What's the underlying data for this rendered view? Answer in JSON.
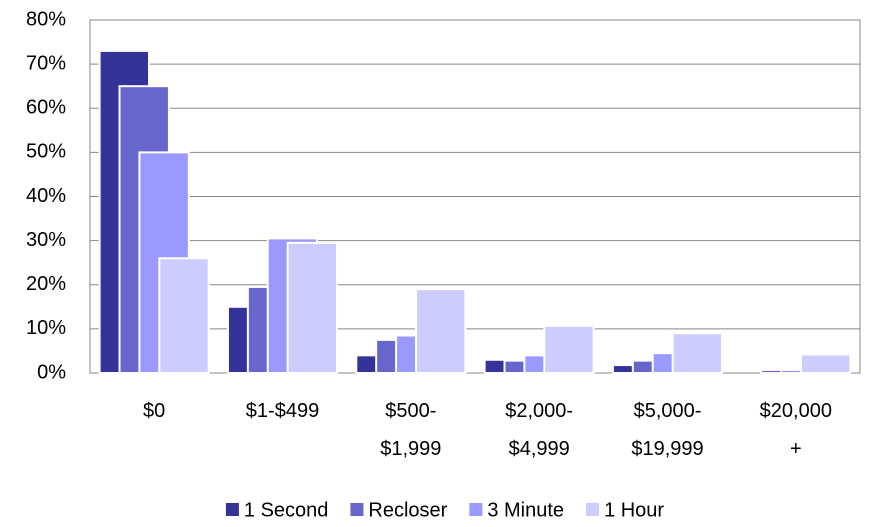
{
  "chart_data": {
    "type": "bar",
    "categories": [
      "$0",
      "$1-$499",
      "$500-\n$1,999",
      "$2,000-\n$4,999",
      "$5,000-\n$19,999",
      "$20,000\n+"
    ],
    "series": [
      {
        "name": "1 Second",
        "color": "#333399",
        "values": [
          73,
          15,
          4,
          3,
          1.8,
          0
        ]
      },
      {
        "name": "Recloser",
        "color": "#6666cc",
        "values": [
          65,
          19.5,
          7.5,
          2.8,
          2.8,
          0.7
        ]
      },
      {
        "name": "3 Minute",
        "color": "#9999ff",
        "values": [
          50,
          30.5,
          8.5,
          4,
          4.5,
          0.7
        ]
      },
      {
        "name": "1 Hour",
        "color": "#ccccff",
        "values": [
          26,
          29.5,
          19,
          10.7,
          9,
          4.2
        ]
      }
    ],
    "ylim": [
      0,
      80
    ],
    "yticks": [
      {
        "value": 0,
        "label": "0%"
      },
      {
        "value": 10,
        "label": "10%"
      },
      {
        "value": 20,
        "label": "20%"
      },
      {
        "value": 30,
        "label": "30%"
      },
      {
        "value": 40,
        "label": "40%"
      },
      {
        "value": 50,
        "label": "50%"
      },
      {
        "value": 60,
        "label": "60%"
      },
      {
        "value": 70,
        "label": "70%"
      },
      {
        "value": 80,
        "label": "80%"
      }
    ],
    "grid": true,
    "legend": "bottom"
  }
}
